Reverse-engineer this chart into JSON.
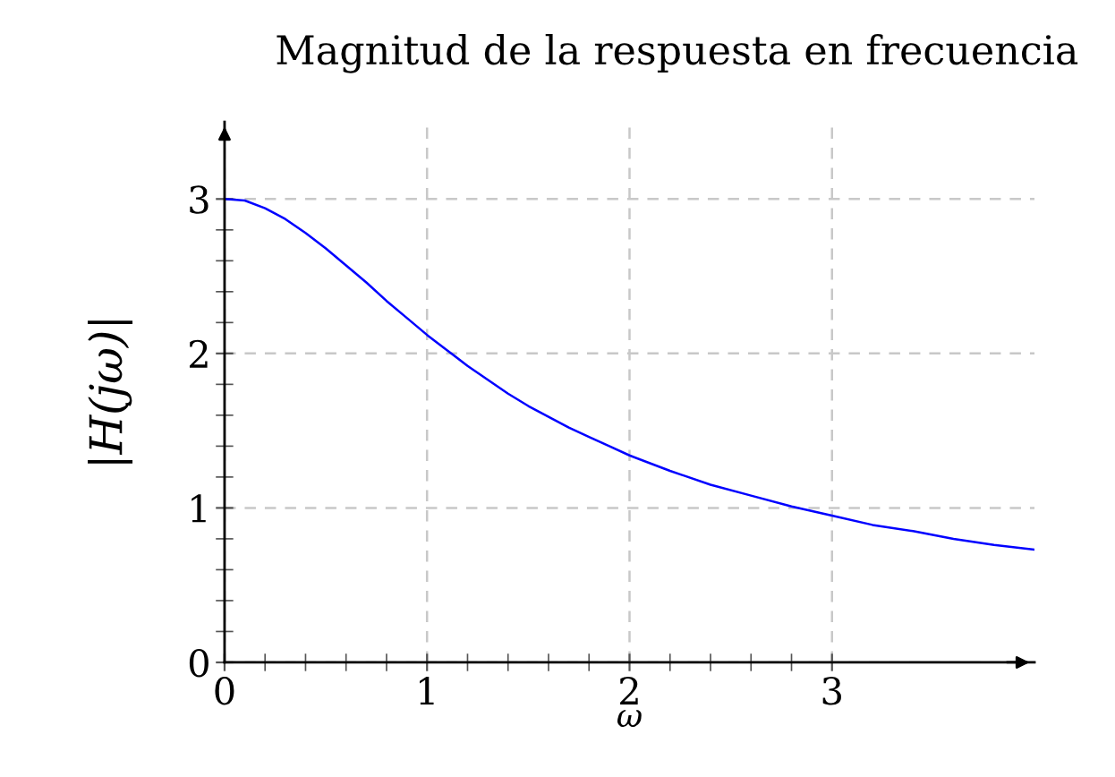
{
  "chart_data": {
    "type": "line",
    "title": "Magnitud de la respuesta en frecuencia",
    "xlabel": "ω",
    "ylabel": "|H(jω)|",
    "x": [
      0,
      0.1,
      0.2,
      0.3,
      0.4,
      0.5,
      0.6,
      0.7,
      0.8,
      0.9,
      1.0,
      1.1,
      1.2,
      1.3,
      1.4,
      1.5,
      1.6,
      1.7,
      1.8,
      1.9,
      2.0,
      2.2,
      2.4,
      2.6,
      2.8,
      3.0,
      3.2,
      3.4,
      3.6,
      3.8,
      4.0
    ],
    "series": [
      {
        "color": "#0000ff",
        "values": [
          3.0,
          2.99,
          2.94,
          2.87,
          2.78,
          2.68,
          2.57,
          2.46,
          2.34,
          2.23,
          2.12,
          2.02,
          1.92,
          1.83,
          1.74,
          1.66,
          1.59,
          1.52,
          1.46,
          1.4,
          1.34,
          1.24,
          1.15,
          1.08,
          1.01,
          0.95,
          0.89,
          0.85,
          0.8,
          0.76,
          0.73
        ]
      }
    ],
    "xlim": [
      0,
      4
    ],
    "ylim": [
      0,
      3.5
    ],
    "xticks": [
      0,
      1,
      2,
      3,
      {
        "value": 0.2,
        "label": null
      },
      {
        "value": 0.4,
        "label": null
      },
      {
        "value": 0.6,
        "label": null
      },
      {
        "value": 0.8,
        "label": null
      },
      {
        "value": 1.2,
        "label": null
      },
      {
        "value": 1.4,
        "label": null
      },
      {
        "value": 1.6,
        "label": null
      },
      {
        "value": 1.8,
        "label": null
      },
      {
        "value": 2.2,
        "label": null
      },
      {
        "value": 2.4,
        "label": null
      },
      {
        "value": 2.6,
        "label": null
      },
      {
        "value": 2.8,
        "label": null
      }
    ],
    "yticks": [
      0,
      1,
      2,
      3,
      {
        "value": 0.2,
        "label": null
      },
      {
        "value": 0.4,
        "label": null
      },
      {
        "value": 0.6,
        "label": null
      },
      {
        "value": 0.8,
        "label": null
      },
      {
        "value": 1.2,
        "label": null
      },
      {
        "value": 1.4,
        "label": null
      },
      {
        "value": 1.6,
        "label": null
      },
      {
        "value": 1.8,
        "label": null
      },
      {
        "value": 2.2,
        "label": null
      },
      {
        "value": 2.4,
        "label": null
      },
      {
        "value": 2.6,
        "label": null
      },
      {
        "value": 2.8,
        "label": null
      }
    ],
    "grid": true,
    "line_style": "solid"
  }
}
